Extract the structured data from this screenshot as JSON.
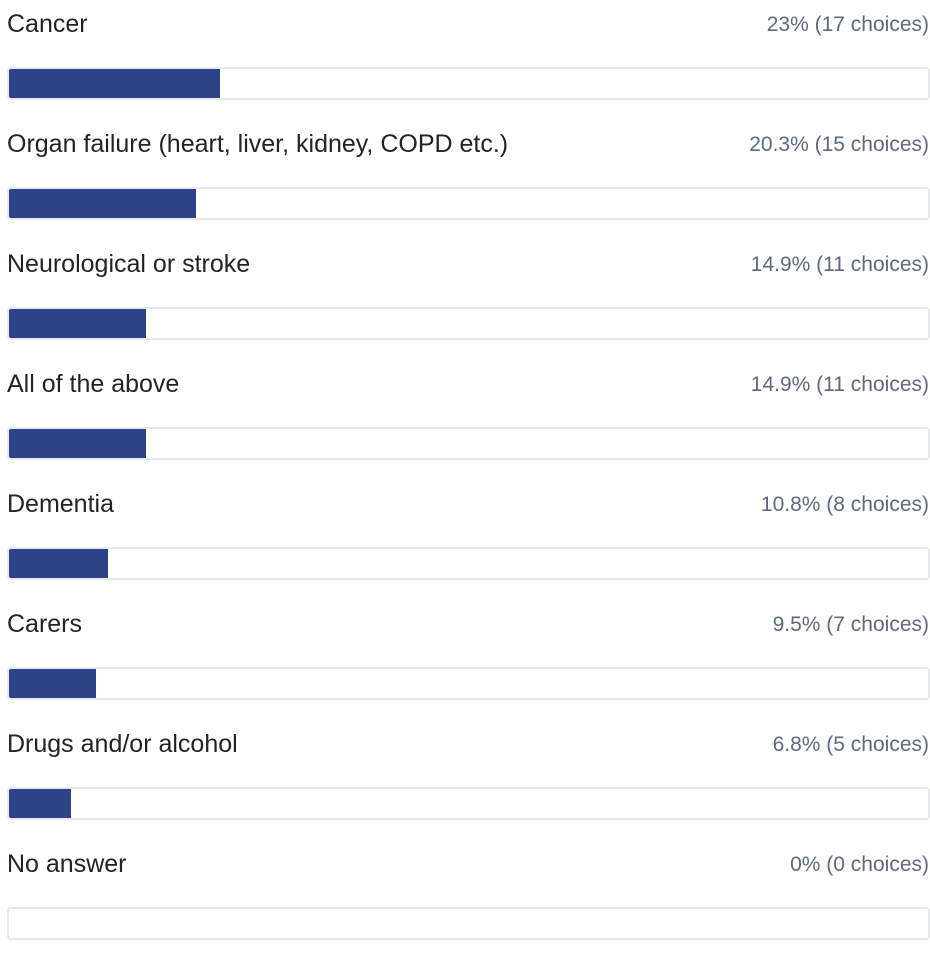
{
  "colors": {
    "bar_fill": "#2c4388",
    "track_border": "#e6e8ec",
    "label_text": "#222326",
    "percent_text": "#5d6a7d"
  },
  "rows": [
    {
      "label": "Cancer",
      "pct_text": "23% (17 choices)"
    },
    {
      "label": "Organ failure (heart, liver, kidney, COPD etc.)",
      "pct_text": "20.3% (15 choices)"
    },
    {
      "label": "Neurological or stroke",
      "pct_text": "14.9% (11 choices)"
    },
    {
      "label": "All of the above",
      "pct_text": "14.9% (11 choices)"
    },
    {
      "label": "Dementia",
      "pct_text": "10.8% (8 choices)"
    },
    {
      "label": "Carers",
      "pct_text": "9.5% (7 choices)"
    },
    {
      "label": "Drugs and/or alcohol",
      "pct_text": "6.8% (5 choices)"
    },
    {
      "label": "No answer",
      "pct_text": "0% (0 choices)"
    }
  ],
  "chart_data": {
    "type": "bar",
    "orientation": "horizontal",
    "categories": [
      "Cancer",
      "Organ failure (heart, liver, kidney, COPD etc.)",
      "Neurological or stroke",
      "All of the above",
      "Dementia",
      "Carers",
      "Drugs and/or alcohol",
      "No answer"
    ],
    "values": [
      23,
      20.3,
      14.9,
      14.9,
      10.8,
      9.5,
      6.8,
      0
    ],
    "choices": [
      17,
      15,
      11,
      11,
      8,
      7,
      5,
      0
    ],
    "unit": "%",
    "xlim": [
      0,
      100
    ],
    "grid": false,
    "legend": "none"
  }
}
